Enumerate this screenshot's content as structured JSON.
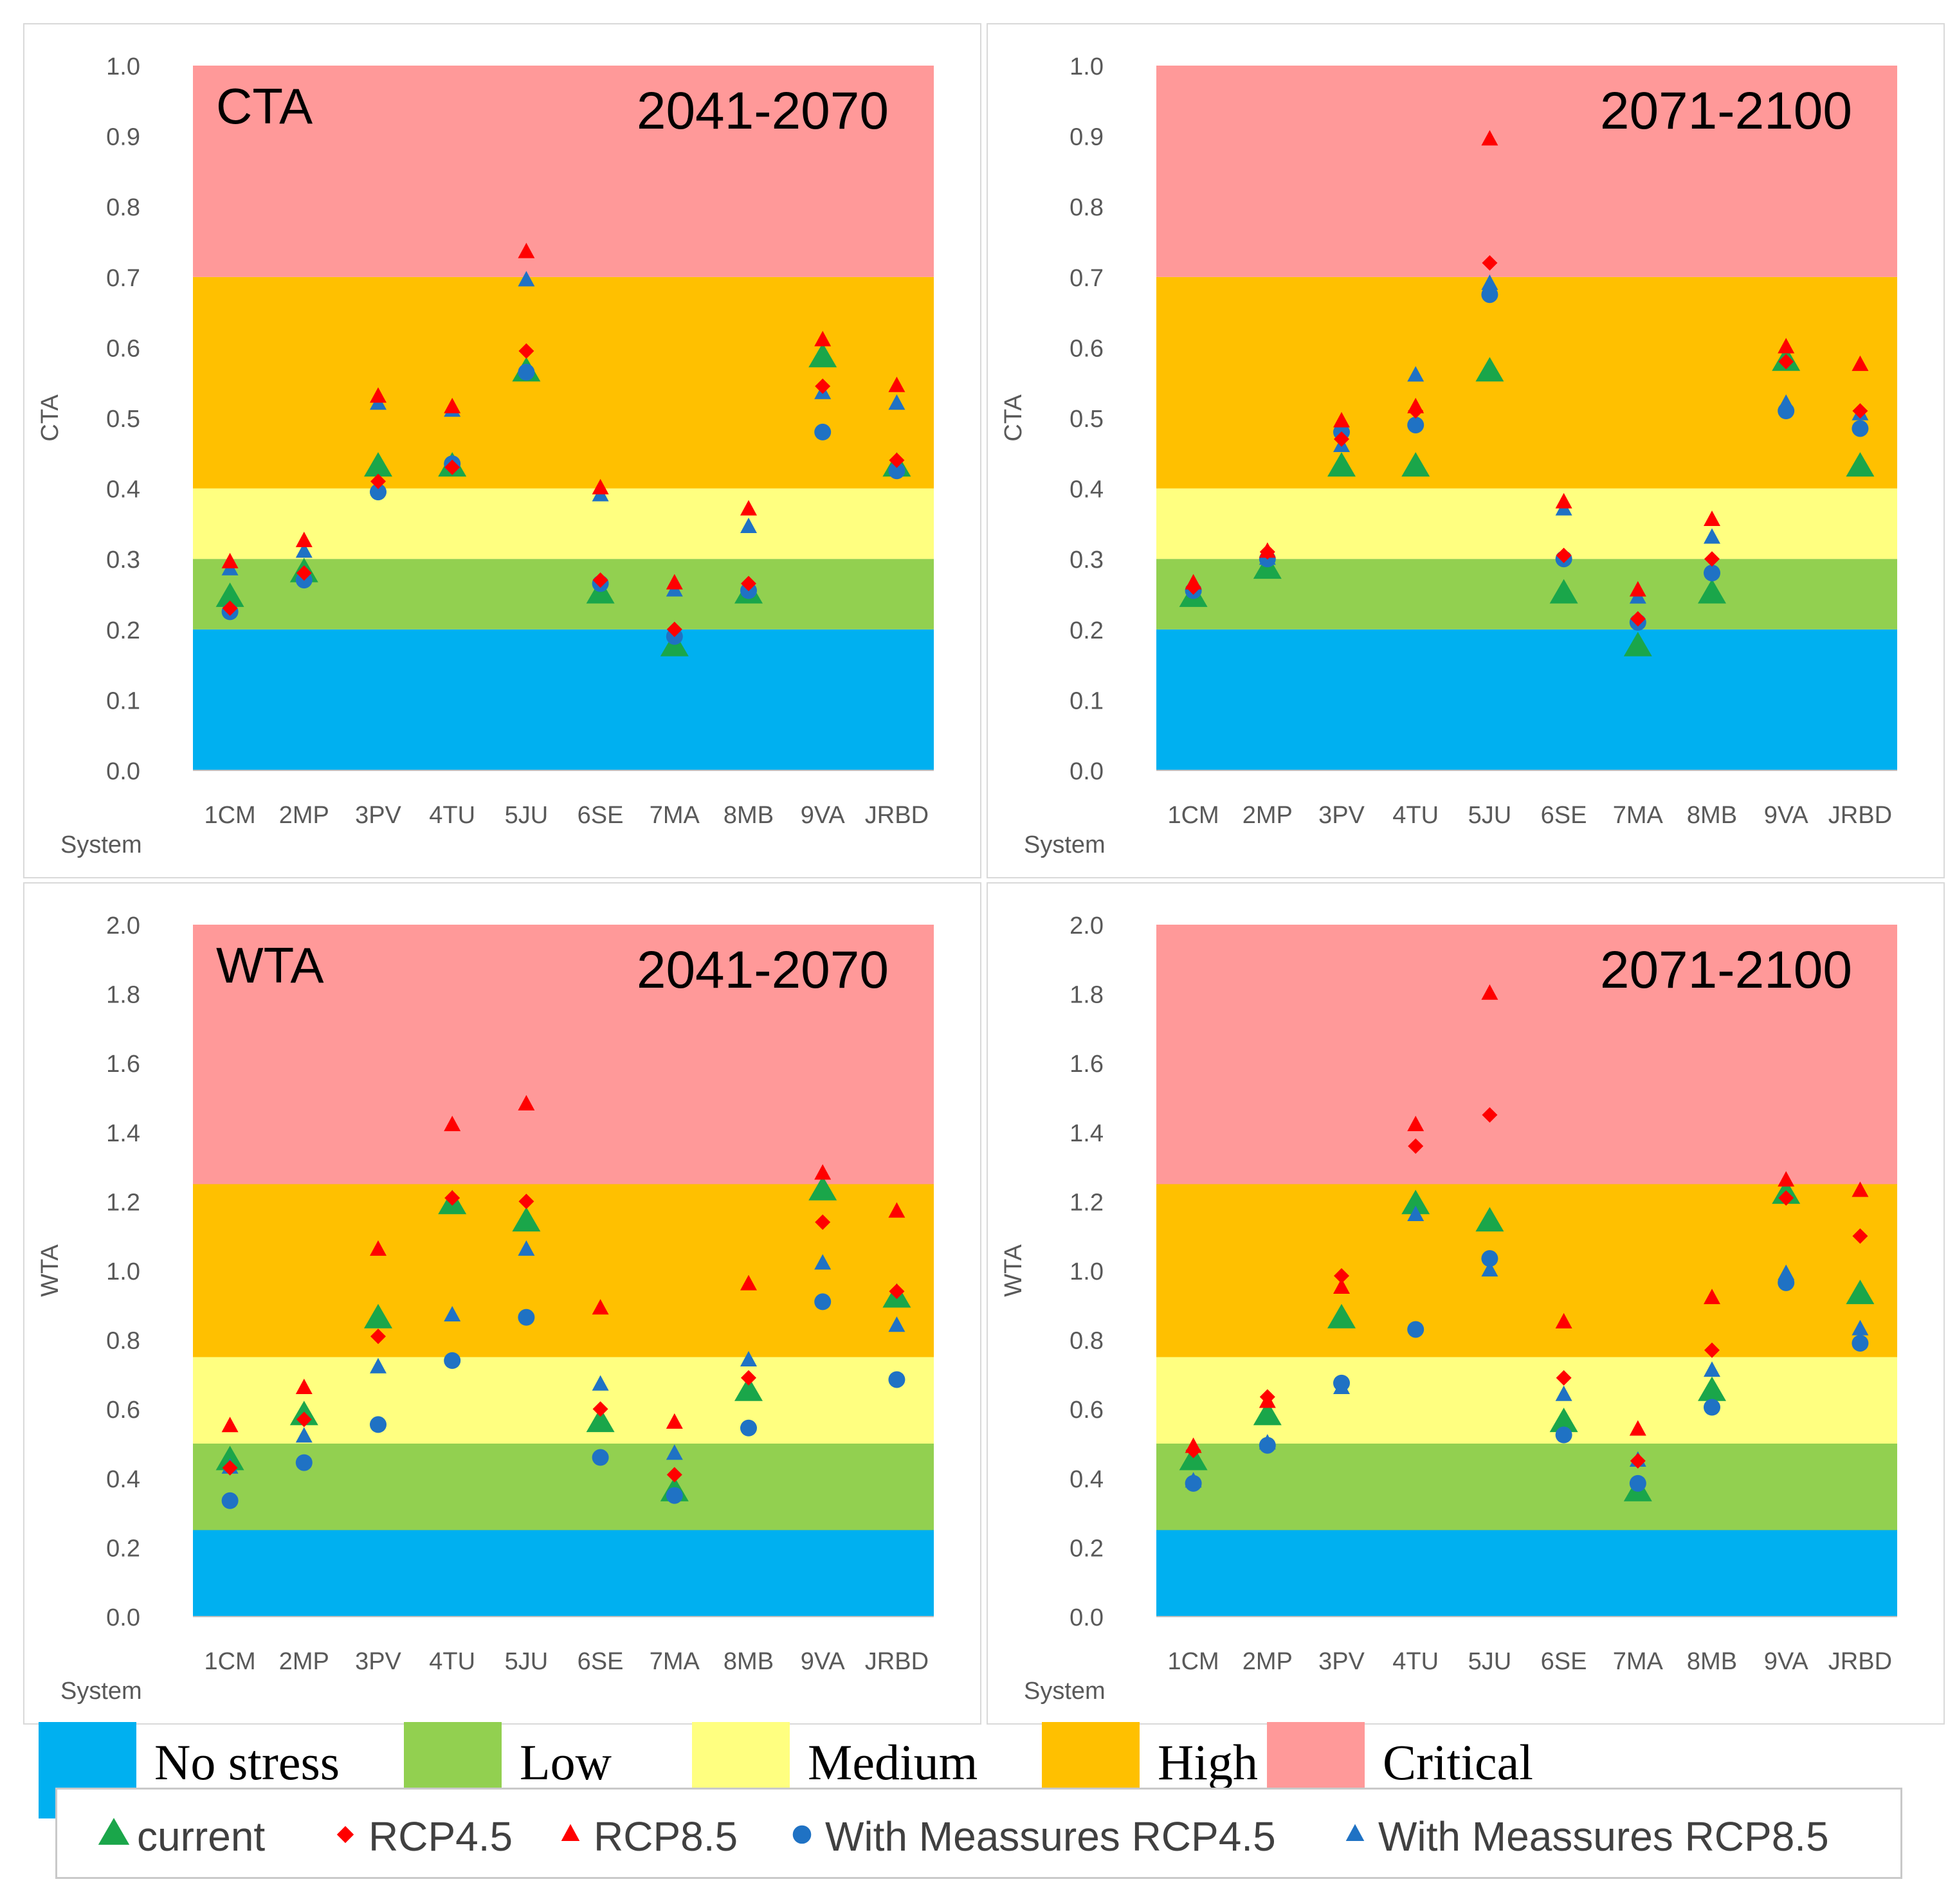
{
  "categories": [
    "1CM",
    "2MP",
    "3PV",
    "4TU",
    "5JU",
    "6SE",
    "7MA",
    "8MB",
    "9VA",
    "JRBD"
  ],
  "series_styles": {
    "current": {
      "color": "#1aa64a",
      "shape": "triangle-large"
    },
    "rcp45": {
      "color": "#ff0000",
      "shape": "diamond"
    },
    "rcp85": {
      "color": "#ff0000",
      "shape": "triangle"
    },
    "wm45": {
      "color": "#1f72c4",
      "shape": "circle"
    },
    "wm85": {
      "color": "#1f72c4",
      "shape": "triangle"
    }
  },
  "legend": {
    "bands": [
      {
        "label": "No stress",
        "color": "#00b0f0"
      },
      {
        "label": "Low",
        "color": "#92d050"
      },
      {
        "label": "Medium",
        "color": "#ffff80"
      },
      {
        "label": "High",
        "color": "#ffc000"
      },
      {
        "label": "Critical",
        "color": "#ff9999"
      }
    ],
    "series": [
      {
        "key": "current",
        "label": "current"
      },
      {
        "key": "rcp45",
        "label": "RCP4.5"
      },
      {
        "key": "rcp85",
        "label": "RCP8.5"
      },
      {
        "key": "wm45",
        "label": "With Meassures RCP4.5"
      },
      {
        "key": "wm85",
        "label": "With Meassures RCP8.5"
      }
    ]
  },
  "chart_data": [
    {
      "type": "scatter",
      "panel": "cta-2041",
      "index_label": "CTA",
      "period": "2041-2070",
      "ylabel": "CTA",
      "xlabel": "System",
      "ylim": [
        0,
        1.0
      ],
      "ytick_step": 0.1,
      "ytick_decimals": 1,
      "yticks": [
        "0.0",
        "0.1",
        "0.2",
        "0.3",
        "0.4",
        "0.5",
        "0.6",
        "0.7",
        "0.8",
        "0.9",
        "1.0"
      ],
      "bands": [
        [
          0,
          0.2
        ],
        [
          0.2,
          0.3
        ],
        [
          0.3,
          0.4
        ],
        [
          0.4,
          0.7
        ],
        [
          0.7,
          1.0
        ]
      ],
      "series": [
        {
          "key": "current",
          "name": "current",
          "values": [
            0.245,
            0.28,
            0.43,
            0.43,
            0.565,
            0.25,
            0.175,
            0.25,
            0.585,
            0.43
          ]
        },
        {
          "key": "rcp45",
          "name": "RCP4.5",
          "values": [
            0.23,
            0.28,
            0.41,
            0.43,
            0.595,
            0.27,
            0.2,
            0.265,
            0.545,
            0.44
          ]
        },
        {
          "key": "rcp85",
          "name": "RCP8.5",
          "values": [
            0.295,
            0.325,
            0.53,
            0.515,
            0.735,
            0.4,
            0.265,
            0.37,
            0.61,
            0.545
          ]
        },
        {
          "key": "wm45",
          "name": "With Meassures RCP4.5",
          "values": [
            0.225,
            0.27,
            0.395,
            0.435,
            0.565,
            0.265,
            0.19,
            0.255,
            0.48,
            0.425
          ]
        },
        {
          "key": "wm85",
          "name": "With Meassures RCP8.5",
          "values": [
            0.285,
            0.31,
            0.52,
            0.51,
            0.695,
            0.39,
            0.255,
            0.345,
            0.535,
            0.52
          ]
        }
      ]
    },
    {
      "type": "scatter",
      "panel": "cta-2071",
      "index_label": "",
      "period": "2071-2100",
      "ylabel": "CTA",
      "xlabel": "System",
      "ylim": [
        0,
        1.0
      ],
      "ytick_step": 0.1,
      "ytick_decimals": 1,
      "yticks": [
        "0.0",
        "0.1",
        "0.2",
        "0.3",
        "0.4",
        "0.5",
        "0.6",
        "0.7",
        "0.8",
        "0.9",
        "1.0"
      ],
      "bands": [
        [
          0,
          0.2
        ],
        [
          0.2,
          0.3
        ],
        [
          0.3,
          0.4
        ],
        [
          0.4,
          0.7
        ],
        [
          0.7,
          1.0
        ]
      ],
      "series": [
        {
          "key": "current",
          "name": "current",
          "values": [
            0.245,
            0.285,
            0.43,
            0.43,
            0.565,
            0.25,
            0.175,
            0.25,
            0.58,
            0.43
          ]
        },
        {
          "key": "rcp45",
          "name": "RCP4.5",
          "values": [
            0.26,
            0.31,
            0.47,
            0.51,
            0.72,
            0.305,
            0.215,
            0.3,
            0.58,
            0.51
          ]
        },
        {
          "key": "rcp85",
          "name": "RCP8.5",
          "values": [
            0.265,
            0.31,
            0.495,
            0.515,
            0.895,
            0.38,
            0.255,
            0.355,
            0.6,
            0.575
          ]
        },
        {
          "key": "wm45",
          "name": "With Meassures RCP4.5",
          "values": [
            0.255,
            0.3,
            0.48,
            0.49,
            0.675,
            0.3,
            0.21,
            0.28,
            0.51,
            0.485
          ]
        },
        {
          "key": "wm85",
          "name": "With Meassures RCP8.5",
          "values": [
            0.26,
            0.3,
            0.46,
            0.56,
            0.69,
            0.37,
            0.245,
            0.33,
            0.52,
            0.505
          ]
        }
      ]
    },
    {
      "type": "scatter",
      "panel": "wta-2041",
      "index_label": "WTA",
      "period": "2041-2070",
      "ylabel": "WTA",
      "xlabel": "System",
      "ylim": [
        0,
        2.0
      ],
      "ytick_step": 0.2,
      "ytick_decimals": 1,
      "yticks": [
        "0.0",
        "0.2",
        "0.4",
        "0.6",
        "0.8",
        "1.0",
        "1.2",
        "1.4",
        "1.6",
        "1.8",
        "2.0"
      ],
      "bands": [
        [
          0,
          0.25
        ],
        [
          0.25,
          0.5
        ],
        [
          0.5,
          0.75
        ],
        [
          0.75,
          1.25
        ],
        [
          1.25,
          2.0
        ]
      ],
      "series": [
        {
          "key": "current",
          "name": "current",
          "values": [
            0.45,
            0.58,
            0.86,
            1.19,
            1.14,
            0.56,
            0.36,
            0.65,
            1.23,
            0.92
          ]
        },
        {
          "key": "rcp45",
          "name": "RCP4.5",
          "values": [
            0.43,
            0.57,
            0.81,
            1.21,
            1.2,
            0.6,
            0.41,
            0.69,
            1.14,
            0.94
          ]
        },
        {
          "key": "rcp85",
          "name": "RCP8.5",
          "values": [
            0.55,
            0.66,
            1.06,
            1.42,
            1.48,
            0.89,
            0.56,
            0.96,
            1.28,
            1.17
          ]
        },
        {
          "key": "wm45",
          "name": "With Meassures RCP4.5",
          "values": [
            0.335,
            0.445,
            0.555,
            0.74,
            0.865,
            0.46,
            0.35,
            0.545,
            0.91,
            0.685
          ]
        },
        {
          "key": "wm85",
          "name": "With Meassures RCP8.5",
          "values": [
            0.43,
            0.52,
            0.72,
            0.87,
            1.06,
            0.67,
            0.47,
            0.74,
            1.02,
            0.84
          ]
        }
      ]
    },
    {
      "type": "scatter",
      "panel": "wta-2071",
      "index_label": "",
      "period": "2071-2100",
      "ylabel": "WTA",
      "xlabel": "System",
      "ylim": [
        0,
        2.0
      ],
      "ytick_step": 0.2,
      "ytick_decimals": 1,
      "yticks": [
        "0.0",
        "0.2",
        "0.4",
        "0.6",
        "0.8",
        "1.0",
        "1.2",
        "1.4",
        "1.6",
        "1.8",
        "2.0"
      ],
      "bands": [
        [
          0,
          0.25
        ],
        [
          0.25,
          0.5
        ],
        [
          0.5,
          0.75
        ],
        [
          0.75,
          1.25
        ],
        [
          1.25,
          2.0
        ]
      ],
      "series": [
        {
          "key": "current",
          "name": "current",
          "values": [
            0.45,
            0.58,
            0.86,
            1.19,
            1.14,
            0.56,
            0.36,
            0.65,
            1.22,
            0.93
          ]
        },
        {
          "key": "rcp45",
          "name": "RCP4.5",
          "values": [
            0.48,
            0.635,
            0.985,
            1.36,
            1.45,
            0.69,
            0.45,
            0.77,
            1.21,
            1.1
          ]
        },
        {
          "key": "rcp85",
          "name": "RCP8.5",
          "values": [
            0.49,
            0.62,
            0.95,
            1.42,
            1.8,
            0.85,
            0.54,
            0.92,
            1.26,
            1.23
          ]
        },
        {
          "key": "wm45",
          "name": "With Meassures RCP4.5",
          "values": [
            0.385,
            0.495,
            0.675,
            0.83,
            1.035,
            0.525,
            0.385,
            0.605,
            0.965,
            0.79
          ]
        },
        {
          "key": "wm85",
          "name": "With Meassures RCP8.5",
          "values": [
            0.39,
            0.5,
            0.66,
            1.16,
            1.0,
            0.64,
            0.45,
            0.71,
            0.99,
            0.83
          ]
        }
      ]
    }
  ]
}
